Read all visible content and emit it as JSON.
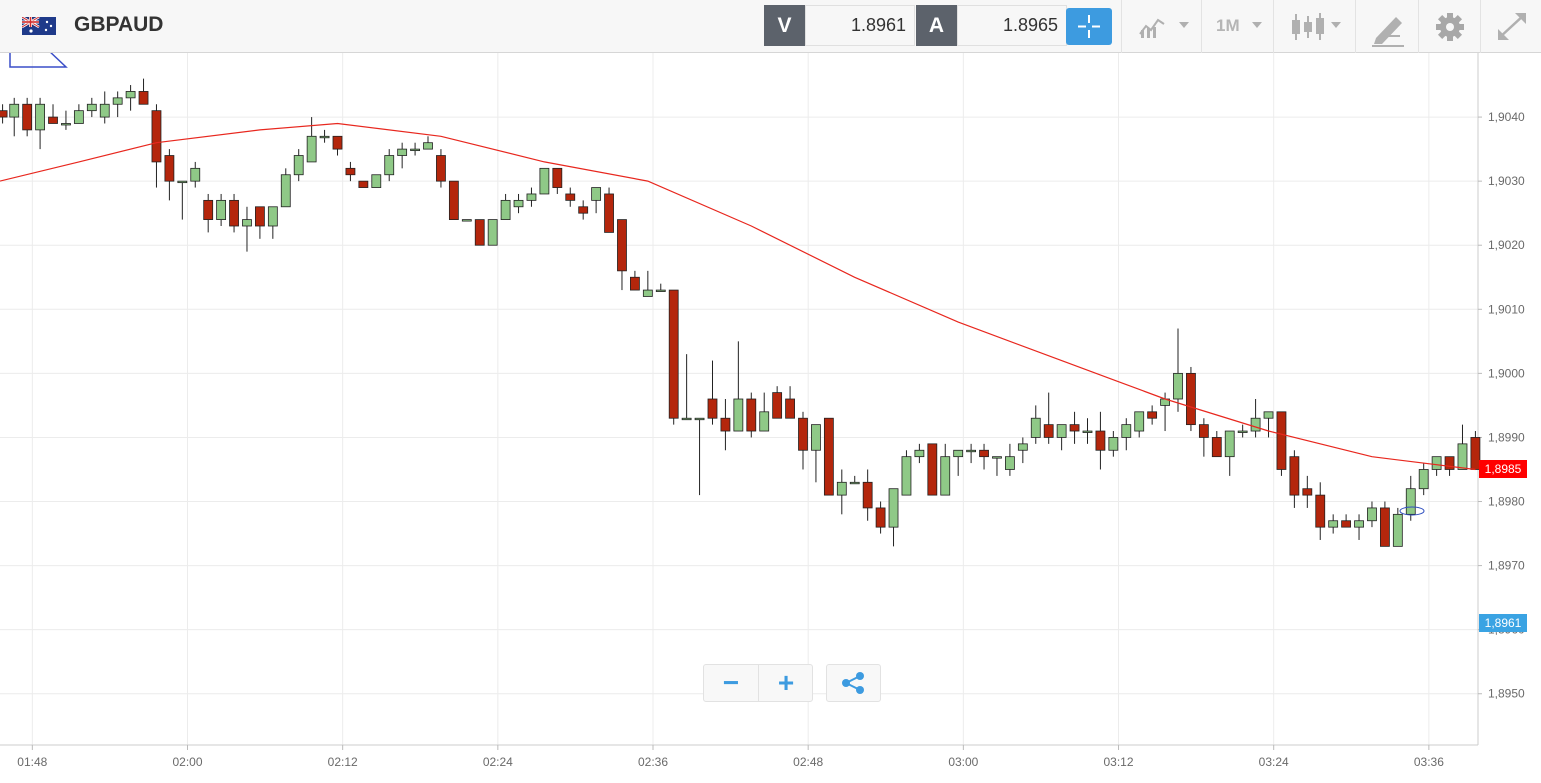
{
  "header": {
    "symbol": "GBPAUD",
    "flag_icon": "gb-au-flag-icon",
    "sell_label": "V",
    "sell_price": "1.8961",
    "buy_label": "A",
    "buy_price": "1.8965",
    "timeframe": "1M",
    "accent_color": "#3d9be0"
  },
  "tools": {
    "crosshair": "crosshair-icon",
    "chart_type": "line-chart-icon",
    "candle": "candlestick-icon",
    "draw": "pencil-icon",
    "settings": "gear-icon",
    "fullscreen": "expand-icon"
  },
  "controls": {
    "zoom_out": "−",
    "zoom_in": "+",
    "share": "share-icon"
  },
  "chart_data": {
    "type": "candlestick",
    "y_ticks": [
      "1,8950",
      "1,8960",
      "1,8970",
      "1,8980",
      "1,8990",
      "1,9000",
      "1,9010",
      "1,9020",
      "1,9030",
      "1,9040"
    ],
    "y_tick_values": [
      1.895,
      1.896,
      1.897,
      1.898,
      1.899,
      1.9,
      1.901,
      1.902,
      1.903,
      1.904
    ],
    "ylim": [
      1.8942,
      1.905
    ],
    "x_ticks": [
      "01:48",
      "02:00",
      "02:12",
      "02:24",
      "02:36",
      "02:48",
      "03:00",
      "03:12",
      "03:24",
      "03:36"
    ],
    "x_tick_minutes": [
      108,
      120,
      132,
      144,
      156,
      168,
      180,
      192,
      204,
      216
    ],
    "xlim_minutes": [
      105.5,
      219.8
    ],
    "up_color": "#8fc987",
    "down_color": "#b4260c",
    "ma_color": "#e8271e",
    "candles": [
      [
        105.7,
        1.9041,
        1.9042,
        1.9039,
        1.904
      ],
      [
        106.6,
        1.904,
        1.9043,
        1.9037,
        1.9042
      ],
      [
        107.6,
        1.9042,
        1.9043,
        1.9037,
        1.9038
      ],
      [
        108.6,
        1.9038,
        1.9043,
        1.9035,
        1.9042
      ],
      [
        109.6,
        1.904,
        1.9042,
        1.9039,
        1.9039
      ],
      [
        110.6,
        1.9039,
        1.9041,
        1.9038,
        1.9039
      ],
      [
        111.6,
        1.9039,
        1.9042,
        1.9039,
        1.9041
      ],
      [
        112.6,
        1.9041,
        1.9043,
        1.904,
        1.9042
      ],
      [
        113.6,
        1.904,
        1.9044,
        1.9039,
        1.9042
      ],
      [
        114.6,
        1.9042,
        1.9044,
        1.904,
        1.9043
      ],
      [
        115.6,
        1.9043,
        1.9045,
        1.9041,
        1.9044
      ],
      [
        116.6,
        1.9044,
        1.9046,
        1.9042,
        1.9042
      ],
      [
        117.6,
        1.9041,
        1.9042,
        1.9029,
        1.9033
      ],
      [
        118.6,
        1.9034,
        1.9035,
        1.9027,
        1.903
      ],
      [
        119.6,
        1.903,
        1.903,
        1.9024,
        1.903
      ],
      [
        120.6,
        1.903,
        1.9033,
        1.9029,
        1.9032
      ],
      [
        121.6,
        1.9027,
        1.9028,
        1.9022,
        1.9024
      ],
      [
        122.6,
        1.9024,
        1.9028,
        1.9023,
        1.9027
      ],
      [
        123.6,
        1.9027,
        1.9028,
        1.9022,
        1.9023
      ],
      [
        124.6,
        1.9023,
        1.9026,
        1.9019,
        1.9024
      ],
      [
        125.6,
        1.9026,
        1.9026,
        1.9021,
        1.9023
      ],
      [
        126.6,
        1.9023,
        1.9026,
        1.9021,
        1.9026
      ],
      [
        127.6,
        1.9026,
        1.9032,
        1.9026,
        1.9031
      ],
      [
        128.6,
        1.9031,
        1.9035,
        1.903,
        1.9034
      ],
      [
        129.6,
        1.9033,
        1.904,
        1.9033,
        1.9037
      ],
      [
        130.6,
        1.9037,
        1.9038,
        1.9036,
        1.9037
      ],
      [
        131.6,
        1.9037,
        1.9037,
        1.9034,
        1.9035
      ],
      [
        132.6,
        1.9032,
        1.9033,
        1.903,
        1.9031
      ],
      [
        133.6,
        1.903,
        1.903,
        1.9029,
        1.9029
      ],
      [
        134.6,
        1.9029,
        1.9031,
        1.9029,
        1.9031
      ],
      [
        135.6,
        1.9031,
        1.9035,
        1.903,
        1.9034
      ],
      [
        136.6,
        1.9034,
        1.9036,
        1.9032,
        1.9035
      ],
      [
        137.6,
        1.9035,
        1.9036,
        1.9034,
        1.9035
      ],
      [
        138.6,
        1.9035,
        1.9037,
        1.9035,
        1.9036
      ],
      [
        139.6,
        1.9034,
        1.9035,
        1.9029,
        1.903
      ],
      [
        140.6,
        1.903,
        1.903,
        1.9024,
        1.9024
      ],
      [
        141.6,
        1.9024,
        1.9024,
        1.9024,
        1.9024
      ],
      [
        142.6,
        1.9024,
        1.9024,
        1.902,
        1.902
      ],
      [
        143.6,
        1.902,
        1.9024,
        1.902,
        1.9024
      ],
      [
        144.6,
        1.9024,
        1.9028,
        1.9024,
        1.9027
      ],
      [
        145.6,
        1.9026,
        1.9028,
        1.9025,
        1.9027
      ],
      [
        146.6,
        1.9027,
        1.9029,
        1.9026,
        1.9028
      ],
      [
        147.6,
        1.9028,
        1.9032,
        1.9028,
        1.9032
      ],
      [
        148.6,
        1.9032,
        1.9032,
        1.9028,
        1.9029
      ],
      [
        149.6,
        1.9028,
        1.9029,
        1.9026,
        1.9027
      ],
      [
        150.6,
        1.9026,
        1.9027,
        1.9024,
        1.9025
      ],
      [
        151.6,
        1.9027,
        1.9029,
        1.9025,
        1.9029
      ],
      [
        152.6,
        1.9028,
        1.9029,
        1.9022,
        1.9022
      ],
      [
        153.6,
        1.9024,
        1.9024,
        1.9013,
        1.9016
      ],
      [
        154.6,
        1.9015,
        1.9016,
        1.9013,
        1.9013
      ],
      [
        155.6,
        1.9012,
        1.9016,
        1.9012,
        1.9013
      ],
      [
        156.6,
        1.9013,
        1.9014,
        1.9013,
        1.9013
      ],
      [
        157.6,
        1.9013,
        1.9013,
        1.8992,
        1.8993
      ],
      [
        158.6,
        1.8993,
        1.9003,
        1.8993,
        1.8993
      ],
      [
        159.6,
        1.8993,
        1.8993,
        1.8981,
        1.8993
      ],
      [
        160.6,
        1.8996,
        1.9002,
        1.8992,
        1.8993
      ],
      [
        161.6,
        1.8993,
        1.8996,
        1.8988,
        1.8991
      ],
      [
        162.6,
        1.8991,
        1.9005,
        1.8991,
        1.8996
      ],
      [
        163.6,
        1.8996,
        1.8997,
        1.899,
        1.8991
      ],
      [
        164.6,
        1.8991,
        1.8997,
        1.8991,
        1.8994
      ],
      [
        165.6,
        1.8997,
        1.8998,
        1.8993,
        1.8993
      ],
      [
        166.6,
        1.8996,
        1.8998,
        1.8993,
        1.8993
      ],
      [
        167.6,
        1.8993,
        1.8994,
        1.8985,
        1.8988
      ],
      [
        168.6,
        1.8988,
        1.8992,
        1.8983,
        1.8992
      ],
      [
        169.6,
        1.8993,
        1.8993,
        1.8981,
        1.8981
      ],
      [
        170.6,
        1.8981,
        1.8985,
        1.8978,
        1.8983
      ],
      [
        171.6,
        1.8983,
        1.8984,
        1.8983,
        1.8983
      ],
      [
        172.6,
        1.8983,
        1.8985,
        1.8977,
        1.8979
      ],
      [
        173.6,
        1.8979,
        1.898,
        1.8975,
        1.8976
      ],
      [
        174.6,
        1.8976,
        1.8982,
        1.8973,
        1.8982
      ],
      [
        175.6,
        1.8981,
        1.8988,
        1.8981,
        1.8987
      ],
      [
        176.6,
        1.8987,
        1.8989,
        1.8986,
        1.8988
      ],
      [
        177.6,
        1.8989,
        1.8989,
        1.8981,
        1.8981
      ],
      [
        178.6,
        1.8981,
        1.8989,
        1.8981,
        1.8987
      ],
      [
        179.6,
        1.8987,
        1.8988,
        1.8984,
        1.8988
      ],
      [
        180.6,
        1.8988,
        1.8989,
        1.8986,
        1.8988
      ],
      [
        181.6,
        1.8988,
        1.8989,
        1.8985,
        1.8987
      ],
      [
        182.6,
        1.8987,
        1.8987,
        1.8984,
        1.8987
      ],
      [
        183.6,
        1.8985,
        1.8989,
        1.8984,
        1.8987
      ],
      [
        184.6,
        1.8988,
        1.899,
        1.8986,
        1.8989
      ],
      [
        185.6,
        1.899,
        1.8995,
        1.8989,
        1.8993
      ],
      [
        186.6,
        1.8992,
        1.8997,
        1.8989,
        1.899
      ],
      [
        187.6,
        1.899,
        1.8992,
        1.8988,
        1.8992
      ],
      [
        188.6,
        1.8992,
        1.8994,
        1.8989,
        1.8991
      ],
      [
        189.6,
        1.8991,
        1.8993,
        1.8989,
        1.8991
      ],
      [
        190.6,
        1.8991,
        1.8994,
        1.8985,
        1.8988
      ],
      [
        191.6,
        1.8988,
        1.8991,
        1.8987,
        1.899
      ],
      [
        192.6,
        1.899,
        1.8993,
        1.8988,
        1.8992
      ],
      [
        193.6,
        1.8991,
        1.8994,
        1.899,
        1.8994
      ],
      [
        194.6,
        1.8994,
        1.8995,
        1.8992,
        1.8993
      ],
      [
        195.6,
        1.8995,
        1.8997,
        1.8991,
        1.8996
      ],
      [
        196.6,
        1.8996,
        1.9007,
        1.8994,
        1.9
      ],
      [
        197.6,
        1.9,
        1.9001,
        1.8991,
        1.8992
      ],
      [
        198.6,
        1.8992,
        1.8993,
        1.8987,
        1.899
      ],
      [
        199.6,
        1.899,
        1.8991,
        1.8987,
        1.8987
      ],
      [
        200.6,
        1.8987,
        1.8991,
        1.8984,
        1.8991
      ],
      [
        201.6,
        1.8991,
        1.8992,
        1.899,
        1.8991
      ],
      [
        202.6,
        1.8991,
        1.8996,
        1.899,
        1.8993
      ],
      [
        203.6,
        1.8993,
        1.8994,
        1.899,
        1.8994
      ],
      [
        204.6,
        1.8994,
        1.8994,
        1.8984,
        1.8985
      ],
      [
        205.6,
        1.8987,
        1.8988,
        1.8979,
        1.8981
      ],
      [
        206.6,
        1.8982,
        1.8984,
        1.8979,
        1.8981
      ],
      [
        207.6,
        1.8981,
        1.8983,
        1.8974,
        1.8976
      ],
      [
        208.6,
        1.8976,
        1.8978,
        1.8975,
        1.8977
      ],
      [
        209.6,
        1.8977,
        1.8978,
        1.8976,
        1.8976
      ],
      [
        210.6,
        1.8976,
        1.8978,
        1.8974,
        1.8977
      ],
      [
        211.6,
        1.8977,
        1.898,
        1.8976,
        1.8979
      ],
      [
        212.6,
        1.8979,
        1.898,
        1.8973,
        1.8973
      ],
      [
        213.6,
        1.8973,
        1.8979,
        1.8973,
        1.8978
      ],
      [
        214.6,
        1.8978,
        1.8984,
        1.8977,
        1.8982
      ],
      [
        215.6,
        1.8982,
        1.8986,
        1.8981,
        1.8985
      ],
      [
        216.6,
        1.8985,
        1.8987,
        1.8984,
        1.8987
      ],
      [
        217.6,
        1.8987,
        1.8987,
        1.8984,
        1.8985
      ],
      [
        218.6,
        1.8985,
        1.8992,
        1.8985,
        1.8989
      ],
      [
        219.6,
        1.899,
        1.8991,
        1.8985,
        1.8985
      ]
    ],
    "moving_average": [
      [
        105.5,
        1.903
      ],
      [
        111.6,
        1.9033
      ],
      [
        117.6,
        1.9036
      ],
      [
        125.6,
        1.9038
      ],
      [
        131.6,
        1.9039
      ],
      [
        139.6,
        1.9037
      ],
      [
        147.6,
        1.9033
      ],
      [
        155.6,
        1.903
      ],
      [
        163.6,
        1.9023
      ],
      [
        171.6,
        1.9015
      ],
      [
        179.6,
        1.9008
      ],
      [
        187.6,
        1.9002
      ],
      [
        195.6,
        1.8996
      ],
      [
        203.6,
        1.8991
      ],
      [
        211.6,
        1.8987
      ],
      [
        219.6,
        1.8985
      ]
    ],
    "last_ma_label": "1,8985",
    "last_price_label": "1,8961",
    "last_price_color": "#3aa3e3",
    "ma_label_color": "#ff0000"
  }
}
